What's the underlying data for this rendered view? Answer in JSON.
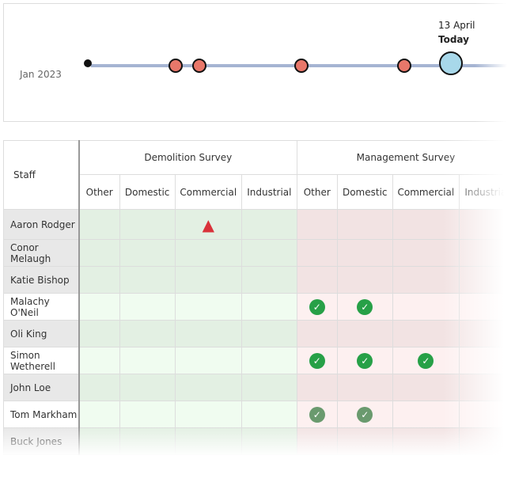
{
  "timeline": {
    "start_label": "Jan 2023",
    "today_date": "13 April",
    "today_label": "Today",
    "colors": {
      "line": "#a5b4d2",
      "event": "#e8776a",
      "today": "#a8d8ea"
    }
  },
  "table": {
    "staff_header": "Staff",
    "groups": [
      "Demolition Survey",
      "Management Survey"
    ],
    "subcolumns": [
      "Other",
      "Domestic",
      "Commercial",
      "Industrial",
      "Other",
      "Domestic",
      "Commercial",
      "Industrial"
    ],
    "rows": [
      {
        "name": "Aaron Rodger",
        "cells": [
          "",
          "",
          "warning",
          "",
          "",
          "",
          "",
          ""
        ]
      },
      {
        "name": "Conor Melaugh",
        "cells": [
          "",
          "",
          "",
          "",
          "",
          "",
          "",
          ""
        ]
      },
      {
        "name": "Katie Bishop",
        "cells": [
          "",
          "",
          "",
          "",
          "",
          "",
          "",
          ""
        ]
      },
      {
        "name": "Malachy O'Neil",
        "cells": [
          "",
          "",
          "",
          "",
          "check",
          "check",
          "",
          ""
        ]
      },
      {
        "name": "Oli King",
        "cells": [
          "",
          "",
          "",
          "",
          "",
          "",
          "",
          ""
        ]
      },
      {
        "name": "Simon Wetherell",
        "cells": [
          "",
          "",
          "",
          "",
          "check",
          "check",
          "check",
          ""
        ]
      },
      {
        "name": "John Loe",
        "cells": [
          "",
          "",
          "",
          "",
          "",
          "",
          "",
          ""
        ]
      },
      {
        "name": "Tom Markham",
        "cells": [
          "",
          "",
          "",
          "",
          "check",
          "check",
          "",
          ""
        ]
      },
      {
        "name": "Buck Jones",
        "cells": [
          "",
          "",
          "",
          "",
          "",
          "",
          "",
          ""
        ]
      }
    ]
  }
}
